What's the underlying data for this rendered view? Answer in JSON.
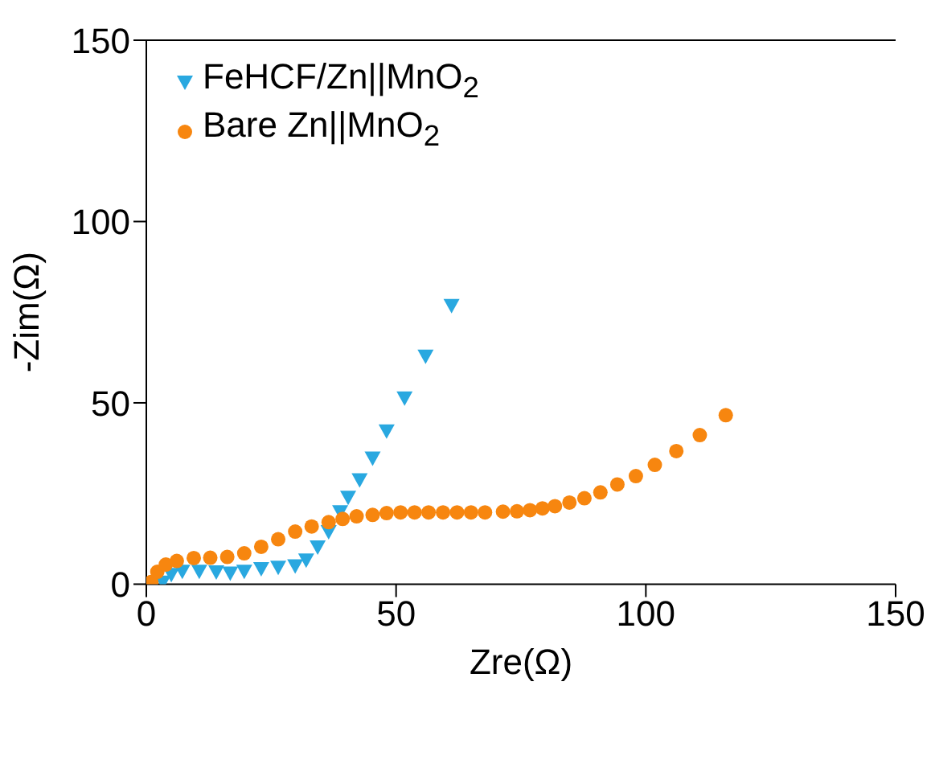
{
  "chart_data": {
    "type": "scatter",
    "xlabel": "Zre(Ω)",
    "ylabel": "-Zim(Ω)",
    "xlim": [
      0,
      150
    ],
    "ylim": [
      0,
      150
    ],
    "xticks": [
      0,
      50,
      100,
      150
    ],
    "yticks": [
      0,
      50,
      100,
      150
    ],
    "grid": false,
    "legend": "top left",
    "series": [
      {
        "name": "FeHCF/Zn||MnO$_{2}$",
        "color": "#29a8e0",
        "marker": "triangle",
        "x": [
          3.3,
          5,
          7.2,
          10.6,
          14,
          16.8,
          19.6,
          23,
          26.4,
          29.8,
          32,
          34.3,
          36.5,
          38.8,
          40.4,
          42.7,
          45.3,
          48.1,
          51.7,
          55.9,
          61.1
        ],
        "values": [
          0.6,
          2.7,
          3.6,
          3.6,
          3.4,
          3.1,
          3.6,
          4.3,
          4.7,
          5.1,
          6.7,
          10.3,
          14.5,
          20,
          24,
          28.8,
          34.8,
          42.3,
          51.4,
          62.9,
          76.9
        ]
      },
      {
        "name": "Bare Zn||MnO$_{2}$",
        "color": "#f7860f",
        "marker": "circle",
        "x": [
          1,
          2.2,
          3.9,
          6.1,
          9.5,
          12.8,
          16.2,
          19.6,
          23,
          26.4,
          29.8,
          33.1,
          36.5,
          39.3,
          42.1,
          45.3,
          48.1,
          50.9,
          53.7,
          56.5,
          59.4,
          62.2,
          65,
          67.8,
          71.4,
          74.2,
          76.8,
          79.3,
          81.8,
          84.7,
          87.7,
          90.9,
          94.3,
          98,
          101.8,
          106.1,
          110.8,
          116
        ],
        "values": [
          0.6,
          3.4,
          5.4,
          6.4,
          7.2,
          7.3,
          7.5,
          8.5,
          10.3,
          12.4,
          14.5,
          15.9,
          17.1,
          18,
          18.7,
          19.1,
          19.6,
          19.8,
          19.8,
          19.8,
          19.8,
          19.8,
          19.8,
          19.8,
          20,
          20.1,
          20.4,
          20.9,
          21.5,
          22.5,
          23.7,
          25.3,
          27.5,
          29.8,
          32.9,
          36.7,
          41.1,
          46.6
        ]
      }
    ]
  }
}
